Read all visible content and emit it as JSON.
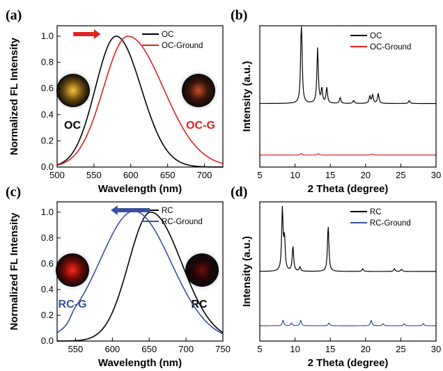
{
  "colors": {
    "black_series": "#000000",
    "red_series": "#e32020",
    "blue_series": "#3a4f9c",
    "arrow_red": "#e32020",
    "arrow_blue": "#3a4f9c"
  },
  "chart_data": [
    {
      "panel": "(a)",
      "type": "line",
      "xlabel": "Wavelength (nm)",
      "ylabel": "Normalized FL Intensity",
      "xlim": [
        500,
        725
      ],
      "ylim": [
        0,
        1.08
      ],
      "xticks": [
        500,
        550,
        600,
        650,
        700
      ],
      "yticks": [
        0.0,
        0.2,
        0.4,
        0.6,
        0.8,
        1.0
      ],
      "legend": "top-right",
      "arrow": "right",
      "insets": [
        {
          "label": "OC",
          "label_color": "#000000",
          "glow": "yellow"
        },
        {
          "label": "OC-G",
          "label_color": "#e32020",
          "glow": "orange"
        }
      ],
      "series": [
        {
          "name": "OC",
          "color": "#000000",
          "peak": 580,
          "sigma_left": 28,
          "sigma_right": 34,
          "x": [],
          "y": []
        },
        {
          "name": "OC-Ground",
          "color": "#e32020",
          "peak": 596,
          "sigma_left": 33,
          "sigma_right": 48,
          "x": [],
          "y": []
        }
      ]
    },
    {
      "panel": "(b)",
      "type": "line",
      "xlabel": "2 Theta (degree)",
      "ylabel": "Intensity (a.u.)",
      "xlim": [
        5,
        30
      ],
      "xticks": [
        5,
        10,
        15,
        20,
        25,
        30
      ],
      "legend": "top-right",
      "series": [
        {
          "name": "OC",
          "color": "#000000",
          "baseline": 0.45,
          "peaks": [
            [
              10.9,
              0.62
            ],
            [
              13.2,
              0.39
            ],
            [
              13.8,
              0.1
            ],
            [
              14.5,
              0.11
            ],
            [
              16.4,
              0.04
            ],
            [
              20.6,
              0.05
            ],
            [
              21.0,
              0.06
            ],
            [
              21.8,
              0.07
            ],
            [
              18.3,
              0.02
            ],
            [
              26.2,
              0.02
            ]
          ]
        },
        {
          "name": "OC-Ground",
          "color": "#e32020",
          "baseline": 0.085,
          "peaks": [
            [
              10.9,
              0.012
            ],
            [
              13.3,
              0.01
            ],
            [
              21.0,
              0.008
            ]
          ]
        }
      ]
    },
    {
      "panel": "(c)",
      "type": "line",
      "xlabel": "Wavelength (nm)",
      "ylabel": "Normalized FL Intensity",
      "xlim": [
        525,
        750
      ],
      "ylim": [
        0,
        1.08
      ],
      "xticks": [
        550,
        600,
        650,
        700,
        750
      ],
      "yticks": [
        0.0,
        0.2,
        0.4,
        0.6,
        0.8,
        1.0
      ],
      "legend": "top-right",
      "arrow": "left",
      "insets": [
        {
          "label": "RC-G",
          "label_color": "#3a4f9c",
          "glow": "red"
        },
        {
          "label": "RC",
          "label_color": "#000000",
          "glow": "dim-red"
        }
      ],
      "series": [
        {
          "name": "RC",
          "color": "#000000",
          "peak": 652,
          "sigma_left": 30,
          "sigma_right": 42,
          "x": [],
          "y": []
        },
        {
          "name": "RC-Ground",
          "color": "#3a4f9c",
          "peak": 630,
          "sigma_left": 45,
          "sigma_right": 50,
          "x": [],
          "y": []
        }
      ]
    },
    {
      "panel": "(d)",
      "type": "line",
      "xlabel": "2 Theta (degree)",
      "ylabel": "Intensity (a.u.)",
      "xlim": [
        5,
        30
      ],
      "xticks": [
        5,
        10,
        15,
        20,
        25,
        30
      ],
      "legend": "top-right",
      "series": [
        {
          "name": "RC",
          "color": "#000000",
          "baseline": 0.5,
          "peaks": [
            [
              8.2,
              0.44
            ],
            [
              8.5,
              0.22
            ],
            [
              9.7,
              0.18
            ],
            [
              10.7,
              0.03
            ],
            [
              14.7,
              0.33
            ],
            [
              19.6,
              0.02
            ],
            [
              24.1,
              0.02
            ],
            [
              25.1,
              0.015
            ]
          ]
        },
        {
          "name": "RC-Ground",
          "color": "#3a4f9c",
          "baseline": 0.11,
          "peaks": [
            [
              8.3,
              0.04
            ],
            [
              9.5,
              0.02
            ],
            [
              10.8,
              0.04
            ],
            [
              14.8,
              0.02
            ],
            [
              20.8,
              0.04
            ],
            [
              22.5,
              0.015
            ],
            [
              25.5,
              0.015
            ],
            [
              28.2,
              0.015
            ]
          ]
        }
      ]
    }
  ]
}
